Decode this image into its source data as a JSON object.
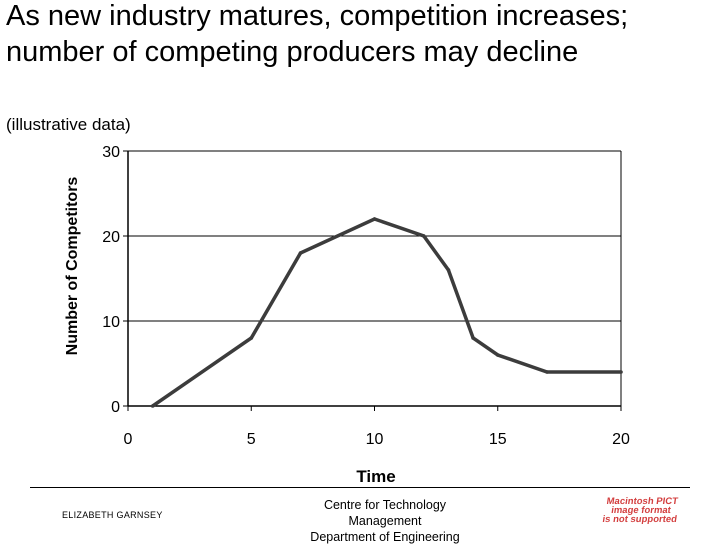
{
  "title": "As new industry matures, competition increases; number of competing producers may decline",
  "subtitle": "(illustrative data)",
  "chart_data": {
    "type": "line",
    "title": "As new industry matures, competition increases; number of competing producers may decline",
    "subtitle": "(illustrative data)",
    "xlabel": "Time",
    "ylabel": "Number of Competitors",
    "xlim": [
      0,
      20
    ],
    "ylim": [
      0,
      30
    ],
    "xticks": [
      0,
      5,
      10,
      15,
      20
    ],
    "yticks": [
      0,
      10,
      20,
      30
    ],
    "xtick_labels": [
      "0",
      "5",
      "10",
      "15",
      "20"
    ],
    "ytick_labels": [
      "0",
      "10",
      "20",
      "30"
    ],
    "grid": "horizontal",
    "legend": "none",
    "line_color": "#3c3c3c",
    "series": [
      {
        "x": [
          1,
          5,
          7,
          10,
          12,
          13,
          14,
          15,
          17,
          20
        ],
        "values": [
          0,
          8,
          18,
          22,
          20,
          16,
          8,
          6,
          4,
          4
        ]
      }
    ]
  },
  "footer": {
    "author": "ELIZABETH GARNSEY",
    "centre": [
      "Centre for Technology",
      "Management",
      "Department of Engineering"
    ],
    "pict": [
      "Macintosh PICT",
      "image format",
      "is not supported"
    ]
  }
}
